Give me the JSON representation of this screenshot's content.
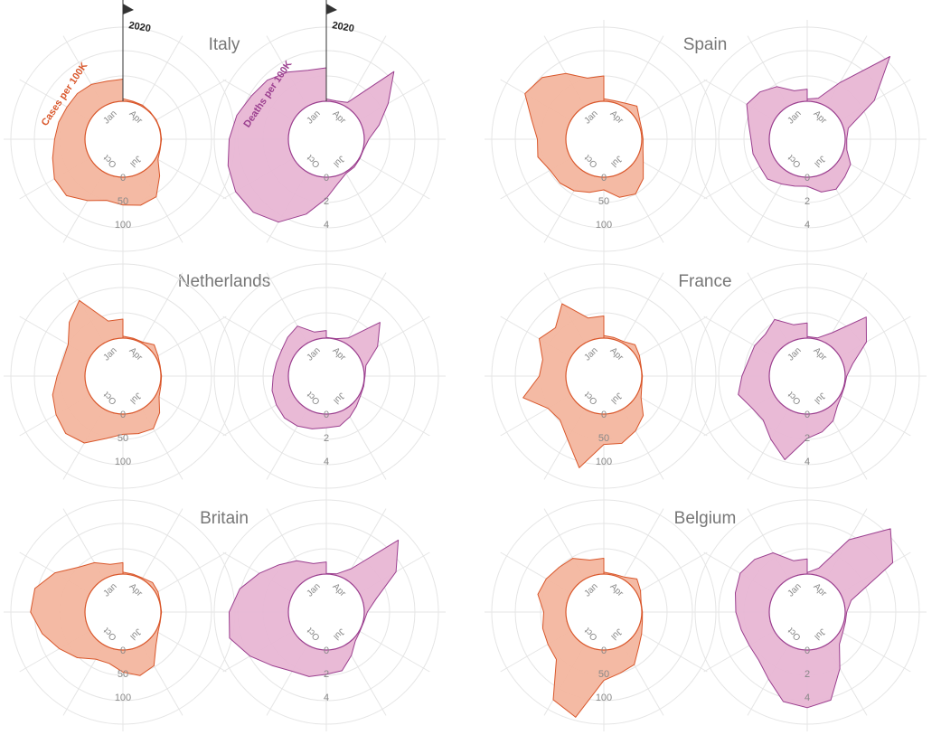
{
  "chart_data": {
    "type": "area",
    "radial": true,
    "year_marker": "2020",
    "metric_labels": {
      "cases": "Cases per 100K",
      "deaths": "Deaths per 100K"
    },
    "month_labels": [
      "Jan",
      "Apr",
      "Jul",
      "Oct"
    ],
    "cases_scale": {
      "ticks": [
        "0",
        "50",
        "100"
      ],
      "max": 120
    },
    "deaths_scale": {
      "ticks": [
        "0",
        "2",
        "4"
      ],
      "max": 5
    },
    "colors": {
      "cases_fill": "#f3b69f",
      "cases_stroke": "#d9572b",
      "deaths_fill": "#e8b6d4",
      "deaths_stroke": "#9b3f8f",
      "grid": "#e5e5e5",
      "title": "#777777"
    },
    "countries": [
      {
        "name": "Italy",
        "cases": [
          4,
          2,
          2,
          1,
          1,
          1,
          1,
          1,
          4,
          22,
          45,
          48,
          44,
          40,
          52,
          66,
          65,
          55,
          48,
          45,
          42,
          42,
          40,
          35
        ],
        "deaths": [
          0.15,
          0.1,
          0.3,
          3.8,
          2.2,
          1.1,
          0.3,
          0.05,
          0.05,
          0.1,
          0.1,
          0.5,
          1.4,
          2.6,
          3.8,
          4.3,
          4.4,
          4.2,
          3.9,
          3.6,
          3.2,
          3.0,
          2.6,
          2.2
        ]
      },
      {
        "name": "Spain",
        "cases": [
          4,
          3,
          6,
          14,
          5,
          2,
          2,
          4,
          12,
          28,
          40,
          35,
          20,
          27,
          34,
          38,
          38,
          48,
          45,
          58,
          84,
          78,
          60,
          40
        ],
        "deaths": [
          0.15,
          0.3,
          1.8,
          5.2,
          2.6,
          0.3,
          0.1,
          0.2,
          0.8,
          1.0,
          1.3,
          1.1,
          0.6,
          0.7,
          0.9,
          1.2,
          1.1,
          1.2,
          1.2,
          1.5,
          2.1,
          1.9,
          1.5,
          0.8
        ]
      },
      {
        "name": "Netherlands",
        "cases": [
          3,
          2,
          2,
          10,
          4,
          1,
          1,
          2,
          6,
          22,
          36,
          34,
          32,
          42,
          62,
          68,
          62,
          55,
          44,
          38,
          40,
          60,
          78,
          30
        ],
        "deaths": [
          0.05,
          0.05,
          0.4,
          2.5,
          1.4,
          0.2,
          0.05,
          0.05,
          0.1,
          0.3,
          0.6,
          0.9,
          0.9,
          1.1,
          1.3,
          1.4,
          1.3,
          1.2,
          1.0,
          0.9,
          0.9,
          1.1,
          1.3,
          0.5
        ]
      },
      {
        "name": "France",
        "cases": [
          4,
          3,
          3,
          10,
          5,
          1,
          1,
          2,
          8,
          28,
          40,
          50,
          48,
          90,
          55,
          38,
          42,
          72,
          42,
          40,
          58,
          48,
          72,
          35
        ],
        "deaths": [
          0.1,
          0.1,
          0.8,
          3.0,
          2.0,
          0.6,
          0.1,
          0.05,
          0.1,
          0.3,
          0.9,
          1.3,
          1.6,
          3.2,
          2.3,
          1.6,
          1.7,
          2.2,
          1.8,
          1.5,
          1.5,
          1.4,
          1.8,
          1.0
        ]
      },
      {
        "name": "Britain",
        "cases": [
          3,
          2,
          2,
          6,
          4,
          1,
          1,
          1,
          4,
          14,
          38,
          44,
          35,
          24,
          26,
          42,
          56,
          72,
          86,
          84,
          64,
          40,
          30,
          18
        ],
        "deaths": [
          0.05,
          0.1,
          0.8,
          4.2,
          2.8,
          0.9,
          0.2,
          0.05,
          0.05,
          0.2,
          0.8,
          1.5,
          1.6,
          1.9,
          2.0,
          2.5,
          3.3,
          4.1,
          3.9,
          3.4,
          2.6,
          1.9,
          1.4,
          0.8
        ]
      },
      {
        "name": "Belgium",
        "cases": [
          3,
          2,
          4,
          14,
          7,
          1,
          1,
          3,
          9,
          18,
          36,
          40,
          48,
          112,
          100,
          46,
          42,
          40,
          35,
          48,
          45,
          40,
          38,
          25
        ],
        "deaths": [
          0.1,
          0.5,
          3.0,
          8.0,
          4.0,
          0.5,
          0.1,
          0.1,
          0.2,
          0.5,
          1.8,
          3.5,
          3.8,
          3.6,
          2.6,
          2.0,
          1.9,
          2.0,
          2.2,
          2.4,
          2.6,
          2.4,
          2.0,
          1.0
        ]
      }
    ]
  }
}
